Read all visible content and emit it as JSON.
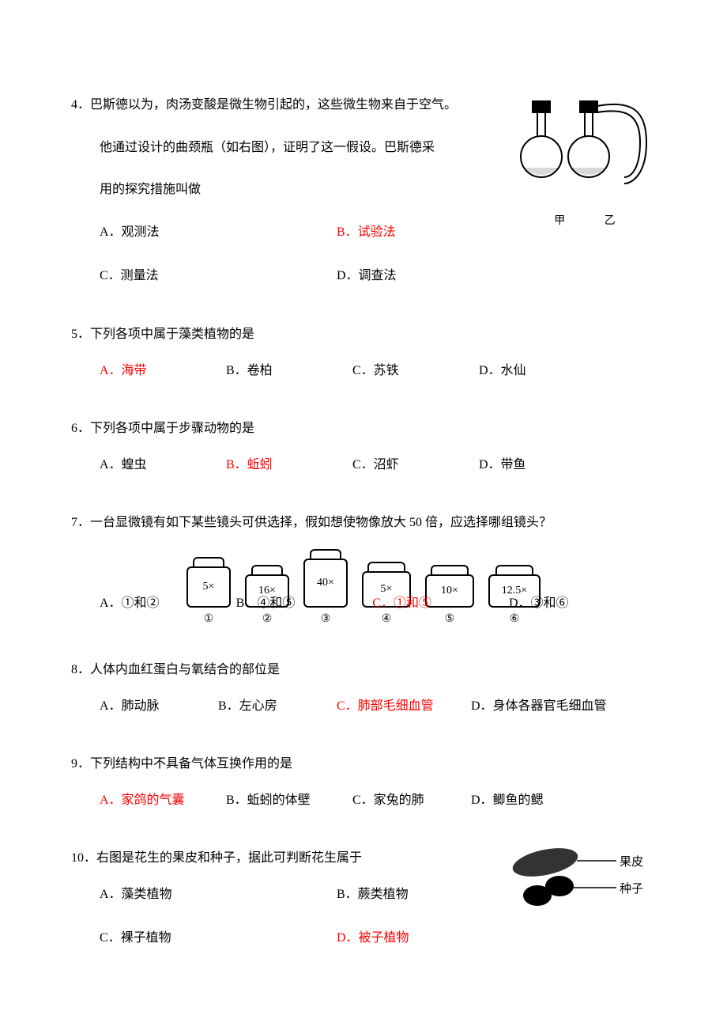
{
  "colors": {
    "text": "#000000",
    "answer": "#ff0000",
    "bg": "#ffffff"
  },
  "q4": {
    "num": "4．",
    "stem_l1": "巴斯德以为，肉汤变酸是微生物引起的，这些微生物来自于空气。",
    "stem_l2": "他通过设计的曲颈瓶（如右图），证明了这一假设。巴斯德采",
    "stem_l3": "用的探究措施叫做",
    "A": "A．观测法",
    "B": "B．试验法",
    "C": "C．测量法",
    "D": "D．调查法",
    "flask_a": "甲",
    "flask_b": "乙"
  },
  "q5": {
    "num": "5．",
    "stem": "下列各项中属于藻类植物的是",
    "A": "A．海带",
    "B": "B．卷柏",
    "C": "C．苏铁",
    "D": "D．水仙"
  },
  "q6": {
    "num": "6．",
    "stem": "下列各项中属于步骤动物的是",
    "A": "A．蝗虫",
    "B": "B．蚯蚓",
    "C": "C．沼虾",
    "D": "D．带鱼"
  },
  "q7": {
    "num": "7．",
    "stem": "一台显微镜有如下某些镜头可供选择，假如想使物像放大 50 倍，应选择哪组镜头？",
    "A": "A．①和②",
    "B": "B．④和⑤",
    "C": "C．①和⑤",
    "D": "D．③和⑥",
    "lenses": [
      {
        "mag": "5×",
        "label": "①",
        "cap_w": 36,
        "body_w": 44,
        "body_h": 44
      },
      {
        "mag": "16×",
        "label": "②",
        "cap_w": 36,
        "body_w": 44,
        "body_h": 34
      },
      {
        "mag": "40×",
        "label": "③",
        "cap_w": 36,
        "body_w": 44,
        "body_h": 54
      },
      {
        "mag": "5×",
        "label": "④",
        "cap_w": 44,
        "body_w": 50,
        "body_h": 38
      },
      {
        "mag": "10×",
        "label": "⑤",
        "cap_w": 44,
        "body_w": 50,
        "body_h": 34
      },
      {
        "mag": "12.5×",
        "label": "⑥",
        "cap_w": 44,
        "body_w": 54,
        "body_h": 34
      }
    ]
  },
  "q8": {
    "num": "8．",
    "stem": "人体内血红蛋白与氧结合的部位是",
    "A": "A．肺动脉",
    "B": "B．左心房",
    "C": "C．肺部毛细血管",
    "D": "D．身体各器官毛细血管"
  },
  "q9": {
    "num": "9．",
    "stem": "下列结构中不具备气体互换作用的是",
    "A": "A．家鸽的气囊",
    "B": "B．蚯蚓的体壁",
    "C": "C．家兔的肺",
    "D": "D．鲫鱼的鳃"
  },
  "q10": {
    "num": "10．",
    "stem": "右图是花生的果皮和种子，据此可判断花生属于",
    "A": "A．藻类植物",
    "B": "B．蕨类植物",
    "C": "C．裸子植物",
    "D": "D．被子植物",
    "label_pericarp": "果皮",
    "label_seed": "种子"
  }
}
